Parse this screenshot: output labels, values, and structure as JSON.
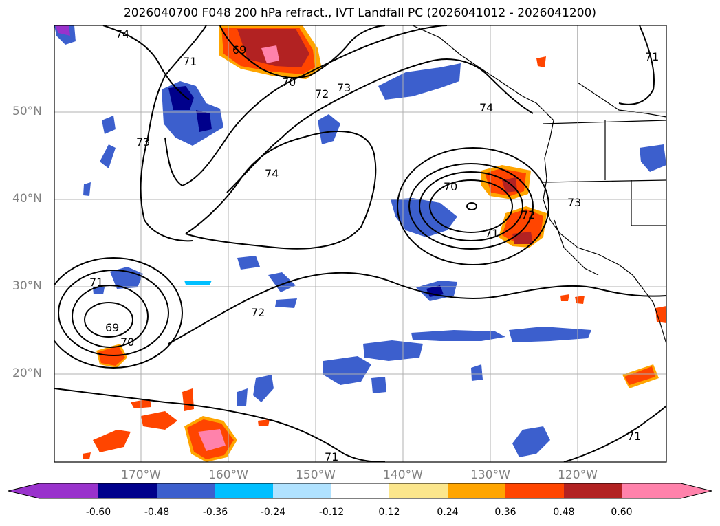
{
  "title": "2026040700 F048 200 hPa refract., IVT Landfall PC (2026041012 - 2026041200)",
  "lat_labels": [
    "50°N",
    "40°N",
    "30°N",
    "20°N"
  ],
  "lon_labels": [
    "170°W",
    "160°W",
    "150°W",
    "140°W",
    "130°W",
    "120°W"
  ],
  "contour_labels": [
    "74",
    "71",
    "69",
    "70",
    "72",
    "73",
    "73",
    "74",
    "74",
    "70",
    "71",
    "72",
    "73",
    "71",
    "69",
    "70",
    "72",
    "71",
    "71",
    "71"
  ],
  "colorbar": {
    "ticks": [
      "-0.60",
      "-0.48",
      "-0.36",
      "-0.24",
      "-0.12",
      "0.12",
      "0.24",
      "0.36",
      "0.48",
      "0.60"
    ],
    "colors": [
      "#9932cc",
      "#00008b",
      "#3c5fcd",
      "#00bfff",
      "#b0e2ff",
      "#ffffff",
      "#fbe68c",
      "#ffa500",
      "#ff4500",
      "#b22222",
      "#ff82ab"
    ]
  },
  "colors": {
    "contour": "#000000",
    "coastline": "#000000",
    "grid": "#b0b0b0",
    "label": "#808080"
  }
}
